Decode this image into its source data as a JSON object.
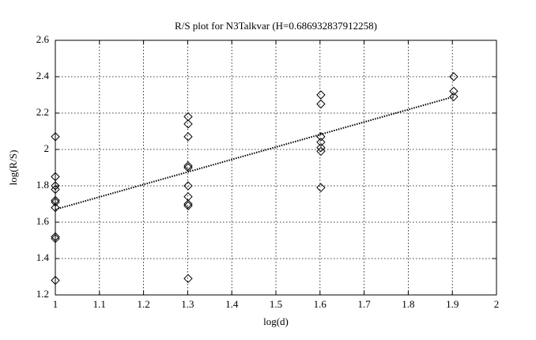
{
  "chart_data": {
    "type": "scatter",
    "title": "R/S plot for N3Talkvar (H=0.686932837912258)",
    "xlabel": "log(d)",
    "ylabel": "log(R/S)",
    "xlim": [
      1,
      2
    ],
    "xticks": [
      1,
      1.1,
      1.2,
      1.3,
      1.4,
      1.5,
      1.6,
      1.7,
      1.8,
      1.9,
      2
    ],
    "ylim": [
      1.2,
      2.6
    ],
    "yticks": [
      1.2,
      1.4,
      1.6,
      1.8,
      2,
      2.2,
      2.4,
      2.6
    ],
    "grid": true,
    "marker": "diamond",
    "color": "#000000",
    "series": [
      {
        "color": "#000000",
        "x": [
          1,
          1,
          1,
          1,
          1,
          1,
          1,
          1,
          1,
          1,
          1.301,
          1.301,
          1.301,
          1.301,
          1.301,
          1.301,
          1.301,
          1.301,
          1.301,
          1.301,
          1.602,
          1.602,
          1.602,
          1.602,
          1.602,
          1.602,
          1.602,
          1.903,
          1.903,
          1.903
        ],
        "values": [
          2.07,
          1.85,
          1.8,
          1.78,
          1.72,
          1.71,
          1.68,
          1.52,
          1.51,
          1.28,
          2.18,
          2.14,
          2.07,
          1.91,
          1.9,
          1.8,
          1.74,
          1.7,
          1.69,
          1.29,
          2.3,
          2.25,
          2.07,
          2.04,
          2.01,
          1.99,
          1.79,
          2.4,
          2.32,
          2.29
        ]
      }
    ],
    "fit": {
      "x": [
        1,
        1.903
      ],
      "values": [
        1.67,
        2.29
      ],
      "color": "#000000",
      "style": "dotted"
    }
  }
}
